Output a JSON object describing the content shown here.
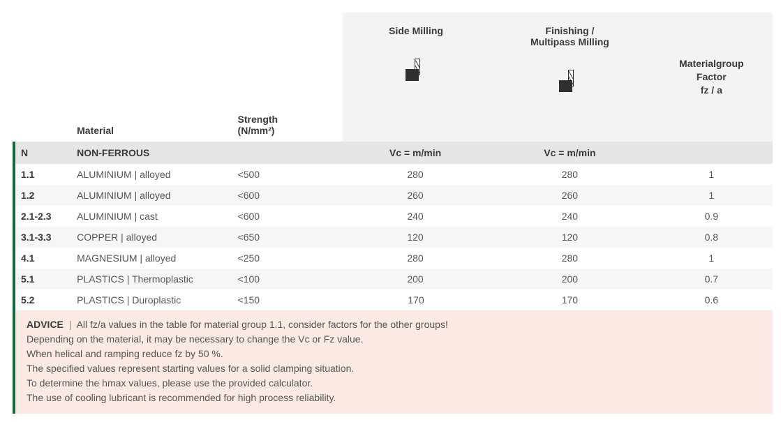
{
  "colors": {
    "accent_green": "#0f6b3a",
    "header_bg": "#f3f3f1",
    "category_bg": "#e6e7e5",
    "row_alt_bg": "#f6f6f5",
    "advice_bg": "#fbe9e3",
    "text_primary": "#3a3a3a",
    "text_secondary": "#555555"
  },
  "headers": {
    "side_milling": "Side Milling",
    "finishing_milling": "Finishing /\nMultipass Milling",
    "material": "Material",
    "strength": "Strength\n(N/mm²)",
    "factor": "Materialgroup\nFactor\nfz / a"
  },
  "category": {
    "code": "N",
    "name": "NON-FERROUS",
    "vc_label": "Vc = m/min"
  },
  "rows": [
    {
      "code": "1.1",
      "material": "ALUMINIUM |  alloyed",
      "strength": "<500",
      "side": "280",
      "finish": "280",
      "factor": "1"
    },
    {
      "code": "1.2",
      "material": "ALUMINIUM | alloyed",
      "strength": "<600",
      "side": "260",
      "finish": "260",
      "factor": "1"
    },
    {
      "code": "2.1-2.3",
      "material": "ALUMINIUM | cast",
      "strength": "<600",
      "side": "240",
      "finish": "240",
      "factor": "0.9"
    },
    {
      "code": "3.1-3.3",
      "material": "COPPER | alloyed",
      "strength": "<650",
      "side": "120",
      "finish": "120",
      "factor": "0.8"
    },
    {
      "code": "4.1",
      "material": "MAGNESIUM | alloyed",
      "strength": "<250",
      "side": "280",
      "finish": "280",
      "factor": "1"
    },
    {
      "code": "5.1",
      "material": "PLASTICS | Thermoplastic",
      "strength": "<100",
      "side": "200",
      "finish": "200",
      "factor": "0.7"
    },
    {
      "code": "5.2",
      "material": "PLASTICS | Duroplastic",
      "strength": "<150",
      "side": "170",
      "finish": "170",
      "factor": "0.6"
    }
  ],
  "advice": {
    "label": "ADVICE",
    "lines": [
      "All fz/a values in the table for material group 1.1, consider factors for the other groups!",
      "Depending on the material, it may be necessary to change the Vc or Fz value.",
      "When helical and ramping reduce fz by 50 %.",
      "The specified values represent starting values for a solid clamping situation.",
      "To determine the hmax values, please use the provided calculator.",
      "The use of cooling lubricant is recommended for high process reliability."
    ]
  }
}
